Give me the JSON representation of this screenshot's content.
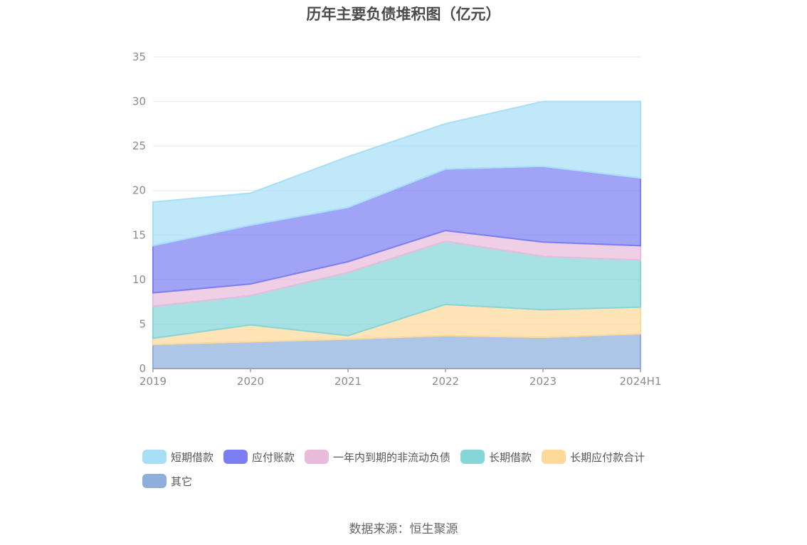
{
  "chart_data": {
    "type": "area",
    "stacked": true,
    "title": "历年主要负债堆积图（亿元）",
    "categories": [
      "2019",
      "2020",
      "2021",
      "2022",
      "2023",
      "2024H1"
    ],
    "ylim": [
      0,
      35
    ],
    "yticks": [
      0,
      5,
      10,
      15,
      20,
      25,
      30,
      35
    ],
    "grid": true,
    "legend_position": "bottom",
    "series": [
      {
        "name": "其它",
        "color": "#8eaedc",
        "values": [
          2.7,
          3.0,
          3.3,
          3.7,
          3.5,
          3.9
        ]
      },
      {
        "name": "长期应付款合计",
        "color": "#fdd99b",
        "values": [
          0.7,
          1.9,
          0.4,
          3.5,
          3.1,
          3.0
        ]
      },
      {
        "name": "长期借款",
        "color": "#86d6d8",
        "values": [
          3.6,
          3.3,
          7.1,
          7.1,
          6.0,
          5.3
        ]
      },
      {
        "name": "一年内到期的非流动负债",
        "color": "#e9bcdb",
        "values": [
          1.5,
          1.3,
          1.2,
          1.2,
          1.6,
          1.6
        ]
      },
      {
        "name": "应付账款",
        "color": "#7b7ff2",
        "values": [
          5.3,
          6.6,
          6.1,
          6.9,
          8.5,
          7.6
        ]
      },
      {
        "name": "短期借款",
        "color": "#a8dff7",
        "values": [
          4.9,
          3.6,
          5.7,
          5.1,
          7.3,
          8.6
        ]
      }
    ],
    "legend_order": [
      "短期借款",
      "应付账款",
      "一年内到期的非流动负债",
      "长期借款",
      "长期应付款合计",
      "其它"
    ]
  },
  "source": "数据来源：恒生聚源"
}
